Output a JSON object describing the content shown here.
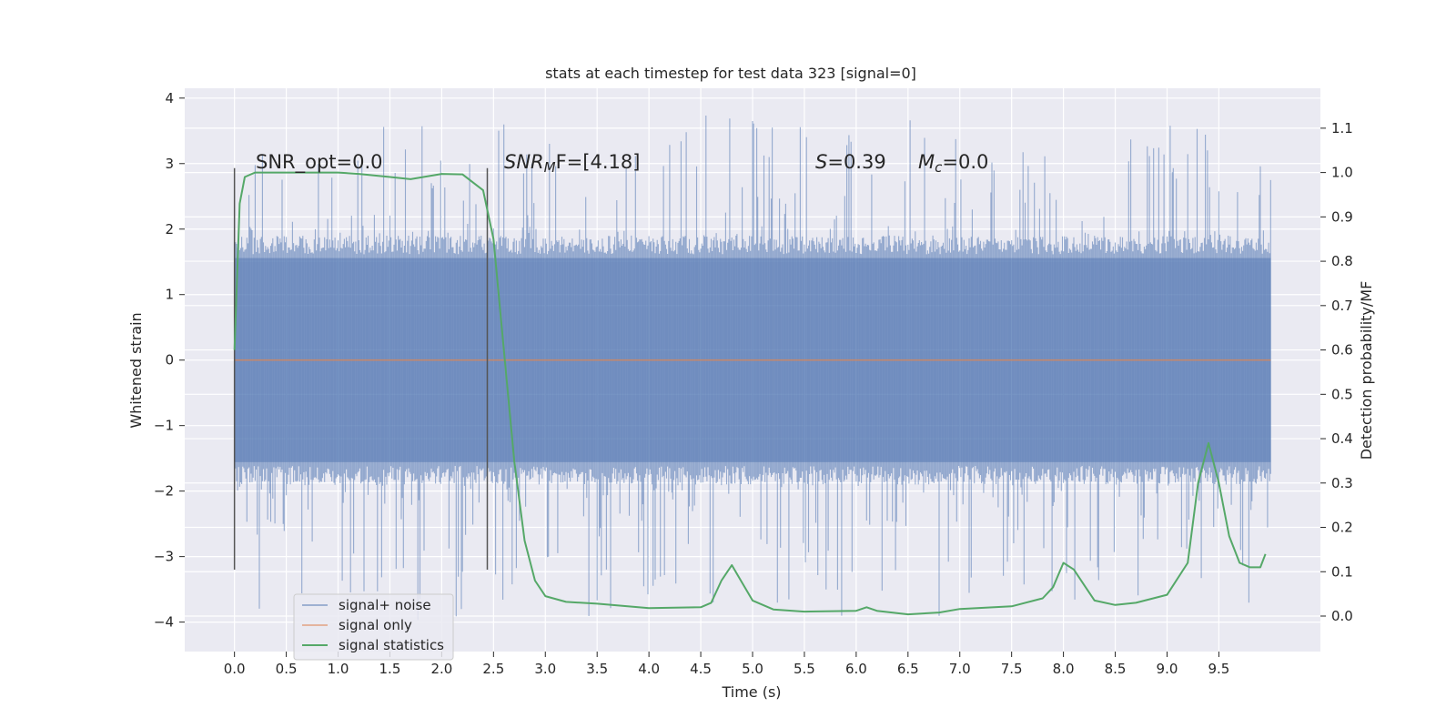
{
  "chart_data": {
    "type": "line",
    "title": "stats at each timestep for test data 323 [signal=0]",
    "xlabel": "Time (s)",
    "ylabel": "Whitened strain",
    "ylabel_right": "Detection probability/MF",
    "xlim": [
      -0.48,
      10.48
    ],
    "ylim": [
      -4.45,
      4.15
    ],
    "ylim_right": [
      -0.08,
      1.19
    ],
    "x_ticks": [
      0.0,
      0.5,
      1.0,
      1.5,
      2.0,
      2.5,
      3.0,
      3.5,
      4.0,
      4.5,
      5.0,
      5.5,
      6.0,
      6.5,
      7.0,
      7.5,
      8.0,
      8.5,
      9.0,
      9.5
    ],
    "x_tick_labels": [
      "0.0",
      "0.5",
      "1.0",
      "1.5",
      "2.0",
      "2.5",
      "3.0",
      "3.5",
      "4.0",
      "4.5",
      "5.0",
      "5.5",
      "6.0",
      "6.5",
      "7.0",
      "7.5",
      "8.0",
      "8.5",
      "9.0",
      "9.5"
    ],
    "y_ticks": [
      -4,
      -3,
      -2,
      -1,
      0,
      1,
      2,
      3,
      4
    ],
    "y_tick_labels": [
      "−4",
      "−3",
      "−2",
      "−1",
      "0",
      "1",
      "2",
      "3",
      "4"
    ],
    "y_ticks_right": [
      0.0,
      0.1,
      0.2,
      0.3,
      0.4,
      0.5,
      0.6,
      0.7,
      0.8,
      0.9,
      1.0,
      1.1
    ],
    "y_tick_labels_right": [
      "0.0",
      "0.1",
      "0.2",
      "0.3",
      "0.4",
      "0.5",
      "0.6",
      "0.7",
      "0.8",
      "0.9",
      "1.0",
      "1.1"
    ],
    "grid": true,
    "legend_position": "lower-left",
    "annotations": {
      "snr_opt": "SNR_opt=0.0",
      "snr_mf_prefix": "SNR",
      "snr_mf_sub": "M",
      "snr_mf_suffix": "F=[4.18]",
      "s_letter": "S",
      "s_value": "=0.39",
      "mc_letter": "M",
      "mc_sub": "c",
      "mc_value": "=0.0"
    },
    "vlines": [
      0.0,
      2.44
    ],
    "vline_range": [
      -3.2,
      2.93
    ],
    "series": [
      {
        "name": "signal+ noise",
        "color": "#4c72b0",
        "axis": "left",
        "kind": "noise",
        "x_range": [
          0.0,
          10.0
        ],
        "core_band": [
          -1.9,
          1.9
        ],
        "extremes": [
          -4.05,
          3.75
        ]
      },
      {
        "name": "signal only",
        "color": "#dd8452",
        "axis": "left",
        "x": [
          0.0,
          10.0
        ],
        "y": [
          0.0,
          0.0
        ]
      },
      {
        "name": "signal statistics",
        "color": "#55a868",
        "axis": "right",
        "x": [
          0.0,
          0.05,
          0.1,
          0.15,
          0.2,
          0.3,
          0.5,
          1.0,
          1.2,
          1.5,
          1.7,
          2.0,
          2.2,
          2.4,
          2.5,
          2.6,
          2.7,
          2.8,
          2.9,
          3.0,
          3.2,
          3.5,
          4.0,
          4.5,
          4.6,
          4.7,
          4.8,
          4.9,
          5.0,
          5.2,
          5.5,
          6.0,
          6.1,
          6.2,
          6.5,
          6.8,
          7.0,
          7.5,
          7.8,
          7.9,
          8.0,
          8.1,
          8.2,
          8.3,
          8.5,
          8.7,
          9.0,
          9.2,
          9.3,
          9.4,
          9.5,
          9.6,
          9.7,
          9.8,
          9.9,
          9.95
        ],
        "y": [
          0.6,
          0.93,
          0.99,
          0.995,
          1.0,
          1.0,
          1.0,
          1.0,
          0.997,
          0.99,
          0.985,
          0.997,
          0.996,
          0.96,
          0.85,
          0.6,
          0.35,
          0.17,
          0.08,
          0.045,
          0.032,
          0.028,
          0.018,
          0.02,
          0.03,
          0.08,
          0.115,
          0.075,
          0.035,
          0.015,
          0.01,
          0.012,
          0.02,
          0.012,
          0.004,
          0.008,
          0.016,
          0.022,
          0.04,
          0.065,
          0.12,
          0.105,
          0.07,
          0.035,
          0.025,
          0.03,
          0.048,
          0.12,
          0.3,
          0.39,
          0.3,
          0.18,
          0.12,
          0.11,
          0.11,
          0.14
        ]
      }
    ]
  }
}
